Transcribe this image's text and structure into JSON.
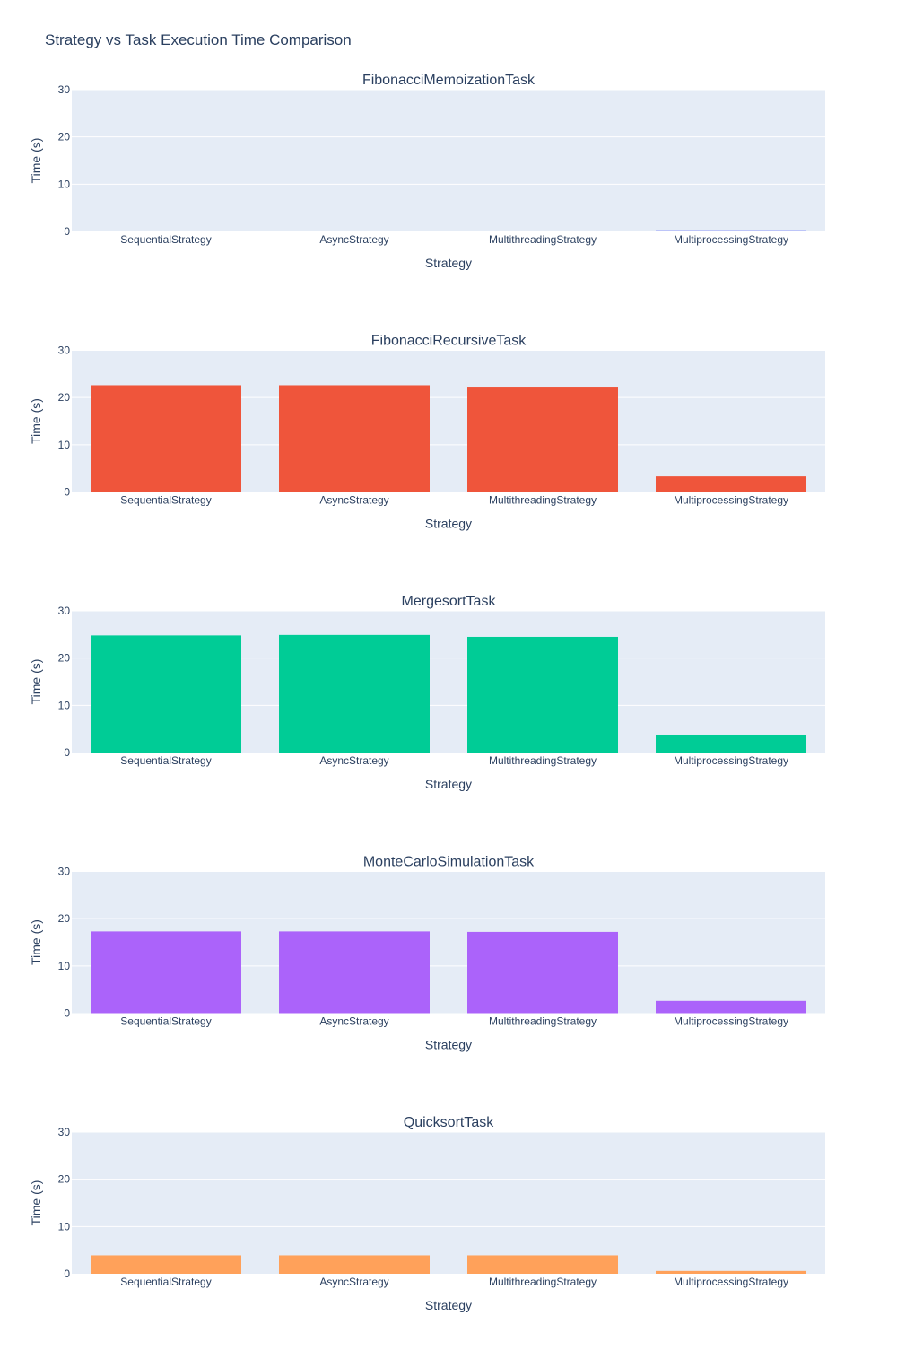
{
  "chart_data": {
    "type": "bar",
    "title": "Strategy vs Task Execution Time Comparison",
    "categories": [
      "SequentialStrategy",
      "AsyncStrategy",
      "MultithreadingStrategy",
      "MultiprocessingStrategy"
    ],
    "xlabel": "Strategy",
    "ylabel": "Time (s)",
    "ylim": [
      0,
      30
    ],
    "yticks": [
      0,
      10,
      20,
      30
    ],
    "grid": true,
    "subplots": [
      {
        "title": "FibonacciMemoizationTask",
        "color": "#636efa",
        "values": [
          0.02,
          0.02,
          0.02,
          0.25
        ]
      },
      {
        "title": "FibonacciRecursiveTask",
        "color": "#ef553b",
        "values": [
          22.6,
          22.6,
          22.3,
          3.3
        ]
      },
      {
        "title": "MergesortTask",
        "color": "#00cc96",
        "values": [
          24.8,
          24.9,
          24.5,
          3.8
        ]
      },
      {
        "title": "MonteCarloSimulationTask",
        "color": "#ab63fa",
        "values": [
          17.3,
          17.3,
          17.2,
          2.6
        ]
      },
      {
        "title": "QuicksortTask",
        "color": "#ffa15a",
        "values": [
          3.9,
          3.9,
          3.9,
          0.6
        ]
      }
    ]
  }
}
